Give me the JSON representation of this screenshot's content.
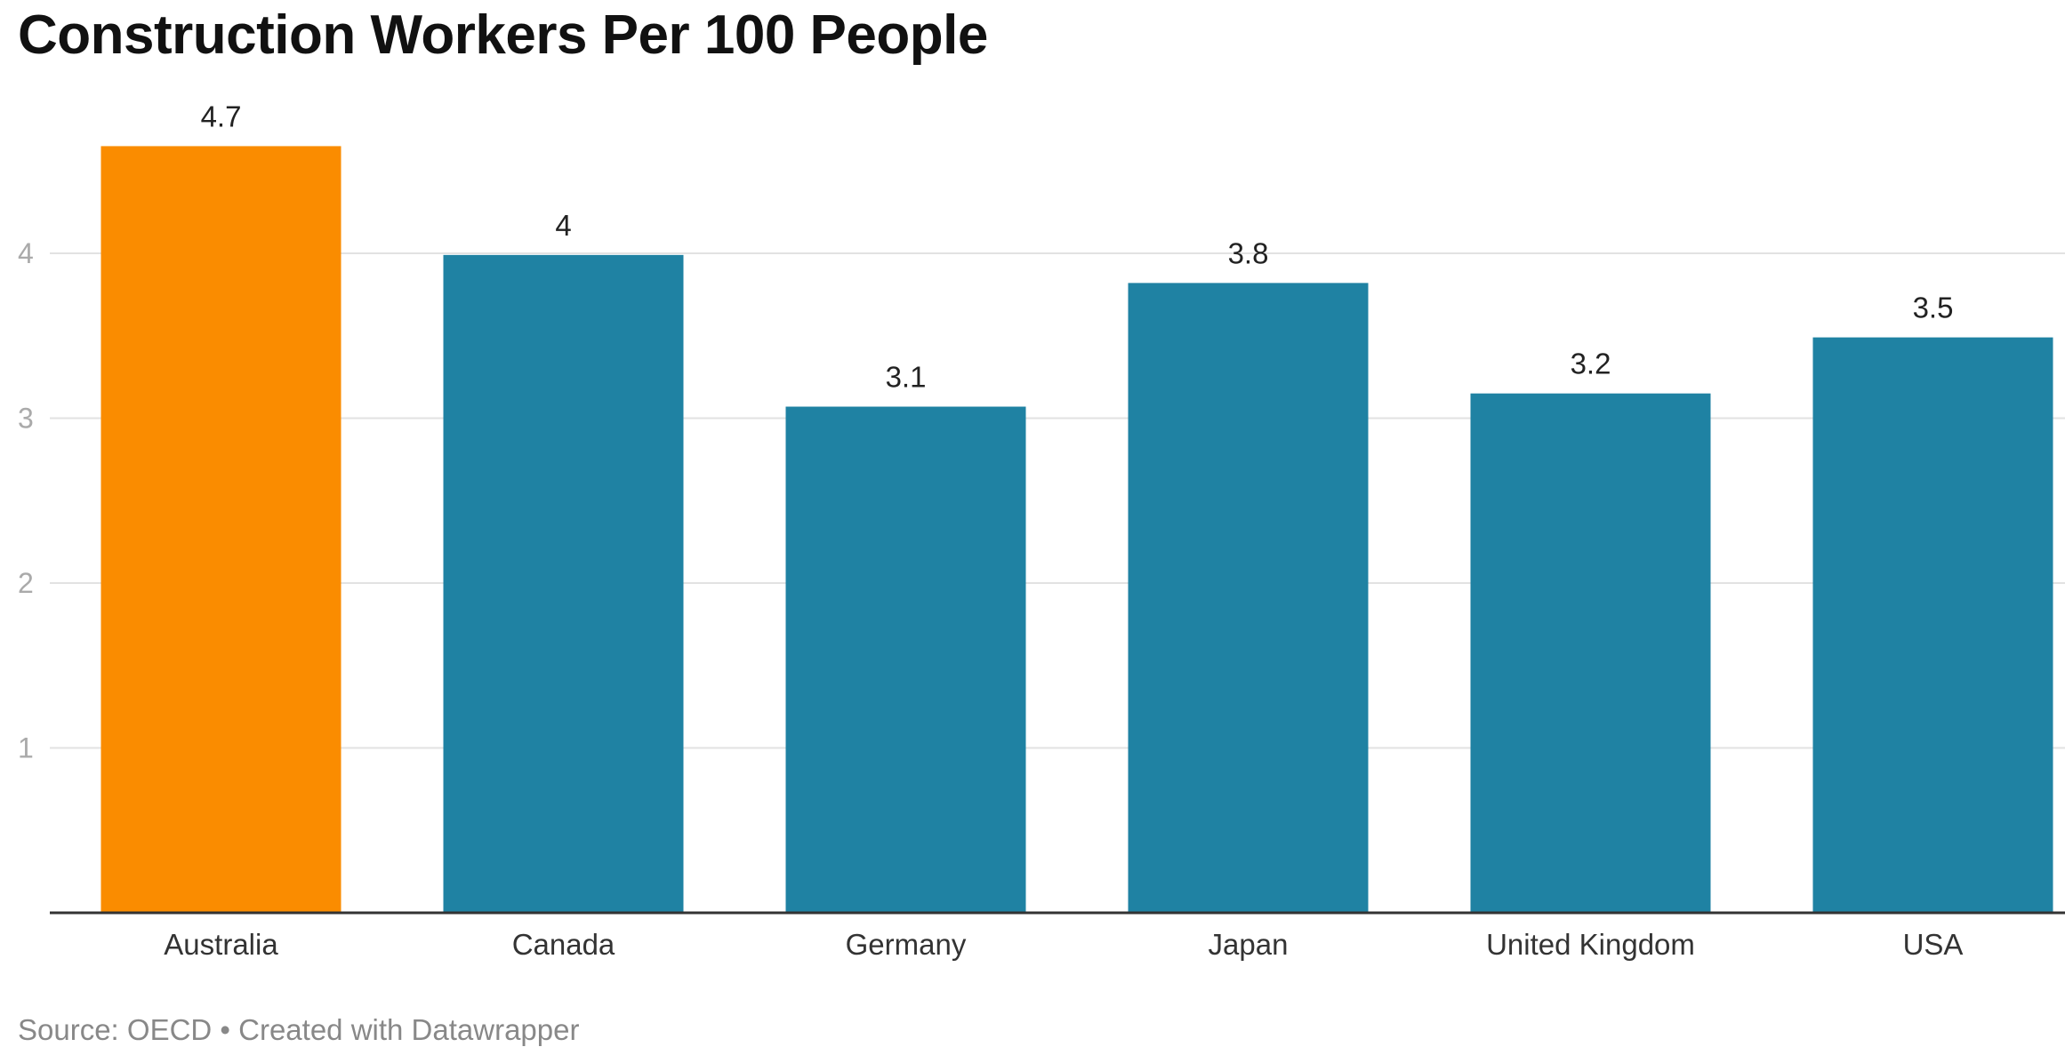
{
  "chart_data": {
    "type": "bar",
    "title": "Construction Workers Per 100 People",
    "categories": [
      "Australia",
      "Canada",
      "Germany",
      "Japan",
      "United Kingdom",
      "USA"
    ],
    "values": [
      4.65,
      3.99,
      3.07,
      3.82,
      3.15,
      3.49
    ],
    "value_labels": [
      "4.7",
      "4",
      "3.1",
      "3.8",
      "3.2",
      "3.5"
    ],
    "highlight_category": "Australia",
    "colors": {
      "highlight": "#FA8C00",
      "default": "#1F82A3",
      "gridline": "#E2E2E2",
      "baseline": "#333333"
    },
    "yticks": [
      "1",
      "2",
      "3",
      "4"
    ],
    "ylim": [
      0,
      4.65
    ],
    "grid": true,
    "xlabel": "",
    "ylabel": ""
  },
  "source": "Source: OECD • Created with Datawrapper"
}
